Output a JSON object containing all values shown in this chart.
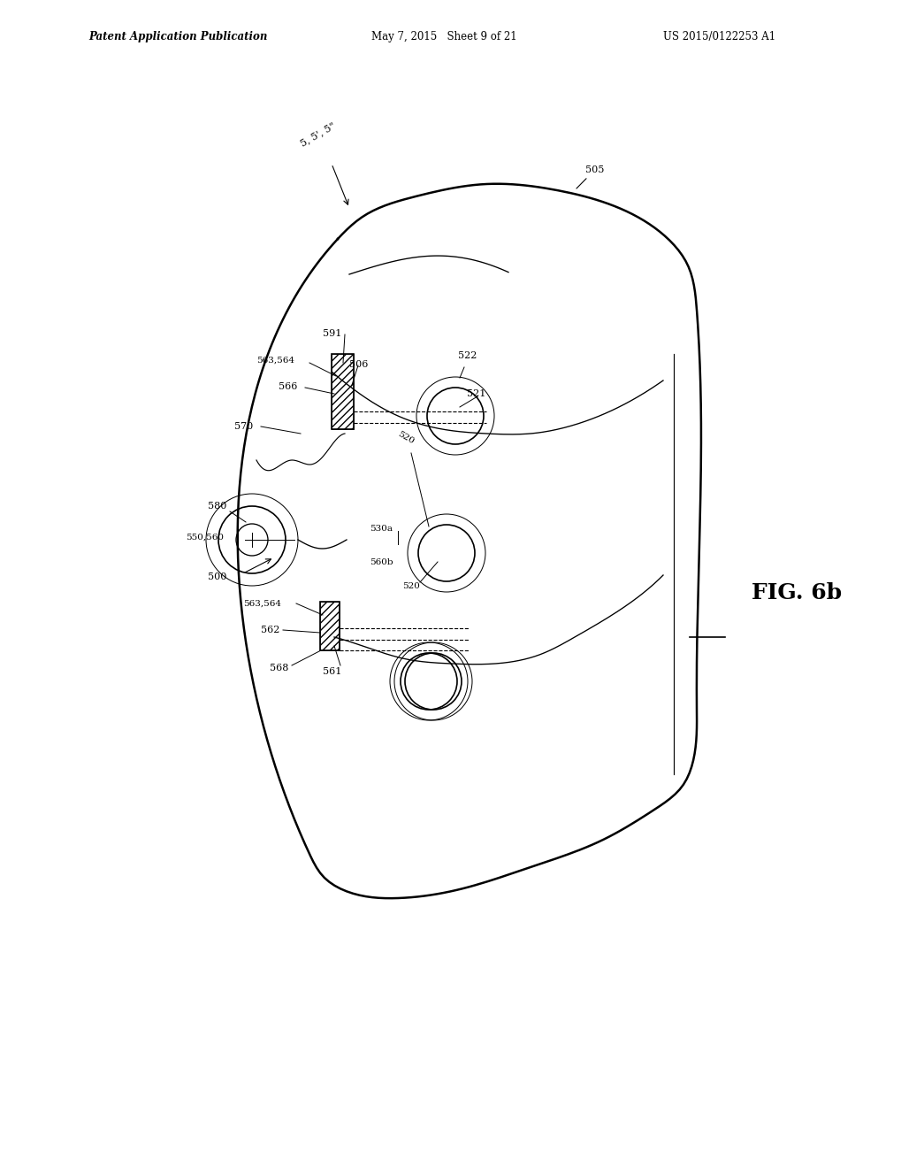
{
  "header_left": "Patent Application Publication",
  "header_mid": "May 7, 2015   Sheet 9 of 21",
  "header_right": "US 2015/0122253 A1",
  "fig_label": "FIG. 6b",
  "bg_color": "#ffffff",
  "line_color": "#000000"
}
